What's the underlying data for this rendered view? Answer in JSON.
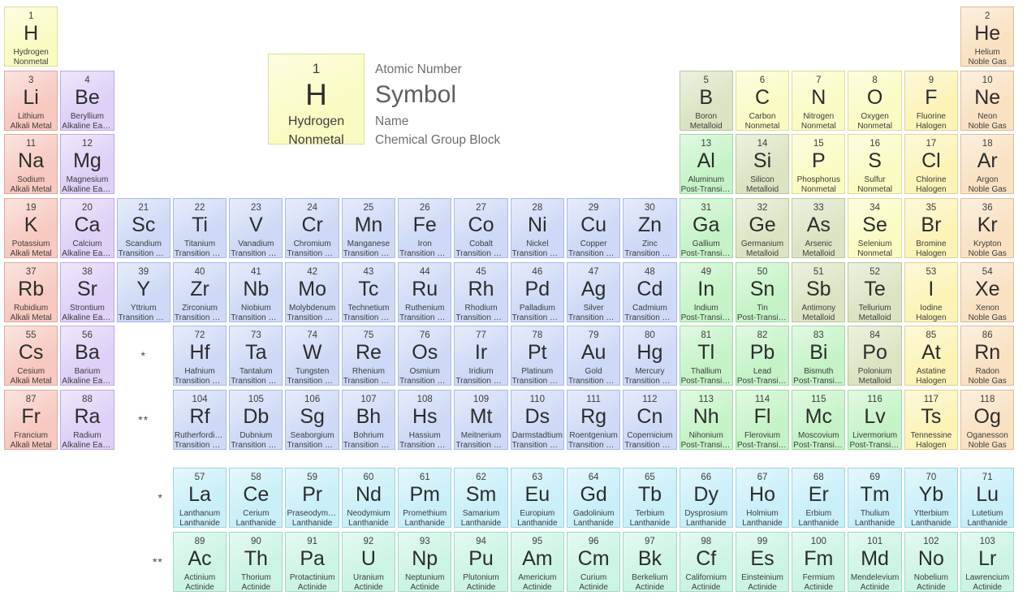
{
  "legend": {
    "atomic_number": "1",
    "symbol": "H",
    "name": "Hydrogen",
    "group": "Nonmetal",
    "labels": {
      "atomic_number": "Atomic Number",
      "symbol": "Symbol",
      "name": "Name",
      "group": "Chemical Group Block"
    }
  },
  "groups": {
    "alkali-metal": {
      "label": "Alkali Metal",
      "fill": "#f7c9c0",
      "border": "#dfaaa1"
    },
    "alkaline-earth-metal": {
      "label": "Alkaline Earth Metal",
      "fill": "#ded0f7",
      "border": "#bfa9e4"
    },
    "transition-metal": {
      "label": "Transition Metal",
      "fill": "#cdd9f6",
      "border": "#abbae4"
    },
    "post-transition-metal": {
      "label": "Post-Transition Metal",
      "fill": "#c5f3c7",
      "border": "#9fdaa1"
    },
    "metalloid": {
      "label": "Metalloid",
      "fill": "#dae4c3",
      "border": "#bac799"
    },
    "nonmetal": {
      "label": "Nonmetal",
      "fill": "#fafbc3",
      "border": "#dcdc9e"
    },
    "halogen": {
      "label": "Halogen",
      "fill": "#fcf3b7",
      "border": "#ded294"
    },
    "noble-gas": {
      "label": "Noble Gas",
      "fill": "#f9e1c2",
      "border": "#debc97"
    },
    "lanthanide": {
      "label": "Lanthanide",
      "fill": "#c9eff8",
      "border": "#9fd4e0"
    },
    "actinide": {
      "label": "Actinide",
      "fill": "#cbf4e4",
      "border": "#a0dac4"
    }
  },
  "markers": [
    {
      "text": "*",
      "row": 6,
      "col": 3,
      "align": "center",
      "name": "lanthanide-series-marker"
    },
    {
      "text": "**",
      "row": 7,
      "col": 3,
      "align": "center",
      "name": "actinide-series-marker"
    },
    {
      "text": "*",
      "row": 8,
      "col": 3,
      "align": "right",
      "name": "lanthanide-row-marker"
    },
    {
      "text": "**",
      "row": 9,
      "col": 3,
      "align": "right",
      "name": "actinide-row-marker"
    }
  ],
  "elements": [
    {
      "number": 1,
      "symbol": "H",
      "name": "Hydrogen",
      "group": "nonmetal",
      "row": 1,
      "col": 1
    },
    {
      "number": 2,
      "symbol": "He",
      "name": "Helium",
      "group": "noble-gas",
      "row": 1,
      "col": 18
    },
    {
      "number": 3,
      "symbol": "Li",
      "name": "Lithium",
      "group": "alkali-metal",
      "row": 2,
      "col": 1
    },
    {
      "number": 4,
      "symbol": "Be",
      "name": "Beryllium",
      "group": "alkaline-earth-metal",
      "row": 2,
      "col": 2
    },
    {
      "number": 5,
      "symbol": "B",
      "name": "Boron",
      "group": "metalloid",
      "row": 2,
      "col": 13
    },
    {
      "number": 6,
      "symbol": "C",
      "name": "Carbon",
      "group": "nonmetal",
      "row": 2,
      "col": 14
    },
    {
      "number": 7,
      "symbol": "N",
      "name": "Nitrogen",
      "group": "nonmetal",
      "row": 2,
      "col": 15
    },
    {
      "number": 8,
      "symbol": "O",
      "name": "Oxygen",
      "group": "nonmetal",
      "row": 2,
      "col": 16
    },
    {
      "number": 9,
      "symbol": "F",
      "name": "Fluorine",
      "group": "halogen",
      "row": 2,
      "col": 17
    },
    {
      "number": 10,
      "symbol": "Ne",
      "name": "Neon",
      "group": "noble-gas",
      "row": 2,
      "col": 18
    },
    {
      "number": 11,
      "symbol": "Na",
      "name": "Sodium",
      "group": "alkali-metal",
      "row": 3,
      "col": 1
    },
    {
      "number": 12,
      "symbol": "Mg",
      "name": "Magnesium",
      "group": "alkaline-earth-metal",
      "row": 3,
      "col": 2
    },
    {
      "number": 13,
      "symbol": "Al",
      "name": "Aluminum",
      "group": "post-transition-metal",
      "row": 3,
      "col": 13
    },
    {
      "number": 14,
      "symbol": "Si",
      "name": "Silicon",
      "group": "metalloid",
      "row": 3,
      "col": 14
    },
    {
      "number": 15,
      "symbol": "P",
      "name": "Phosphorus",
      "group": "nonmetal",
      "row": 3,
      "col": 15
    },
    {
      "number": 16,
      "symbol": "S",
      "name": "Sulfur",
      "group": "nonmetal",
      "row": 3,
      "col": 16
    },
    {
      "number": 17,
      "symbol": "Cl",
      "name": "Chlorine",
      "group": "halogen",
      "row": 3,
      "col": 17
    },
    {
      "number": 18,
      "symbol": "Ar",
      "name": "Argon",
      "group": "noble-gas",
      "row": 3,
      "col": 18
    },
    {
      "number": 19,
      "symbol": "K",
      "name": "Potassium",
      "group": "alkali-metal",
      "row": 4,
      "col": 1
    },
    {
      "number": 20,
      "symbol": "Ca",
      "name": "Calcium",
      "group": "alkaline-earth-metal",
      "row": 4,
      "col": 2
    },
    {
      "number": 21,
      "symbol": "Sc",
      "name": "Scandium",
      "group": "transition-metal",
      "row": 4,
      "col": 3
    },
    {
      "number": 22,
      "symbol": "Ti",
      "name": "Titanium",
      "group": "transition-metal",
      "row": 4,
      "col": 4
    },
    {
      "number": 23,
      "symbol": "V",
      "name": "Vanadium",
      "group": "transition-metal",
      "row": 4,
      "col": 5
    },
    {
      "number": 24,
      "symbol": "Cr",
      "name": "Chromium",
      "group": "transition-metal",
      "row": 4,
      "col": 6
    },
    {
      "number": 25,
      "symbol": "Mn",
      "name": "Manganese",
      "group": "transition-metal",
      "row": 4,
      "col": 7
    },
    {
      "number": 26,
      "symbol": "Fe",
      "name": "Iron",
      "group": "transition-metal",
      "row": 4,
      "col": 8
    },
    {
      "number": 27,
      "symbol": "Co",
      "name": "Cobalt",
      "group": "transition-metal",
      "row": 4,
      "col": 9
    },
    {
      "number": 28,
      "symbol": "Ni",
      "name": "Nickel",
      "group": "transition-metal",
      "row": 4,
      "col": 10
    },
    {
      "number": 29,
      "symbol": "Cu",
      "name": "Copper",
      "group": "transition-metal",
      "row": 4,
      "col": 11
    },
    {
      "number": 30,
      "symbol": "Zn",
      "name": "Zinc",
      "group": "transition-metal",
      "row": 4,
      "col": 12
    },
    {
      "number": 31,
      "symbol": "Ga",
      "name": "Gallium",
      "group": "post-transition-metal",
      "row": 4,
      "col": 13
    },
    {
      "number": 32,
      "symbol": "Ge",
      "name": "Germanium",
      "group": "metalloid",
      "row": 4,
      "col": 14
    },
    {
      "number": 33,
      "symbol": "As",
      "name": "Arsenic",
      "group": "metalloid",
      "row": 4,
      "col": 15
    },
    {
      "number": 34,
      "symbol": "Se",
      "name": "Selenium",
      "group": "nonmetal",
      "row": 4,
      "col": 16
    },
    {
      "number": 35,
      "symbol": "Br",
      "name": "Bromine",
      "group": "halogen",
      "row": 4,
      "col": 17
    },
    {
      "number": 36,
      "symbol": "Kr",
      "name": "Krypton",
      "group": "noble-gas",
      "row": 4,
      "col": 18
    },
    {
      "number": 37,
      "symbol": "Rb",
      "name": "Rubidium",
      "group": "alkali-metal",
      "row": 5,
      "col": 1
    },
    {
      "number": 38,
      "symbol": "Sr",
      "name": "Strontium",
      "group": "alkaline-earth-metal",
      "row": 5,
      "col": 2
    },
    {
      "number": 39,
      "symbol": "Y",
      "name": "Yttrium",
      "group": "transition-metal",
      "row": 5,
      "col": 3
    },
    {
      "number": 40,
      "symbol": "Zr",
      "name": "Zirconium",
      "group": "transition-metal",
      "row": 5,
      "col": 4
    },
    {
      "number": 41,
      "symbol": "Nb",
      "name": "Niobium",
      "group": "transition-metal",
      "row": 5,
      "col": 5
    },
    {
      "number": 42,
      "symbol": "Mo",
      "name": "Molybdenum",
      "group": "transition-metal",
      "row": 5,
      "col": 6
    },
    {
      "number": 43,
      "symbol": "Tc",
      "name": "Technetium",
      "group": "transition-metal",
      "row": 5,
      "col": 7
    },
    {
      "number": 44,
      "symbol": "Ru",
      "name": "Ruthenium",
      "group": "transition-metal",
      "row": 5,
      "col": 8
    },
    {
      "number": 45,
      "symbol": "Rh",
      "name": "Rhodium",
      "group": "transition-metal",
      "row": 5,
      "col": 9
    },
    {
      "number": 46,
      "symbol": "Pd",
      "name": "Palladium",
      "group": "transition-metal",
      "row": 5,
      "col": 10
    },
    {
      "number": 47,
      "symbol": "Ag",
      "name": "Silver",
      "group": "transition-metal",
      "row": 5,
      "col": 11
    },
    {
      "number": 48,
      "symbol": "Cd",
      "name": "Cadmium",
      "group": "transition-metal",
      "row": 5,
      "col": 12
    },
    {
      "number": 49,
      "symbol": "In",
      "name": "Indium",
      "group": "post-transition-metal",
      "row": 5,
      "col": 13
    },
    {
      "number": 50,
      "symbol": "Sn",
      "name": "Tin",
      "group": "post-transition-metal",
      "row": 5,
      "col": 14
    },
    {
      "number": 51,
      "symbol": "Sb",
      "name": "Antimony",
      "group": "metalloid",
      "row": 5,
      "col": 15
    },
    {
      "number": 52,
      "symbol": "Te",
      "name": "Tellurium",
      "group": "metalloid",
      "row": 5,
      "col": 16
    },
    {
      "number": 53,
      "symbol": "I",
      "name": "Iodine",
      "group": "halogen",
      "row": 5,
      "col": 17
    },
    {
      "number": 54,
      "symbol": "Xe",
      "name": "Xenon",
      "group": "noble-gas",
      "row": 5,
      "col": 18
    },
    {
      "number": 55,
      "symbol": "Cs",
      "name": "Cesium",
      "group": "alkali-metal",
      "row": 6,
      "col": 1
    },
    {
      "number": 56,
      "symbol": "Ba",
      "name": "Barium",
      "group": "alkaline-earth-metal",
      "row": 6,
      "col": 2
    },
    {
      "number": 72,
      "symbol": "Hf",
      "name": "Hafnium",
      "group": "transition-metal",
      "row": 6,
      "col": 4
    },
    {
      "number": 73,
      "symbol": "Ta",
      "name": "Tantalum",
      "group": "transition-metal",
      "row": 6,
      "col": 5
    },
    {
      "number": 74,
      "symbol": "W",
      "name": "Tungsten",
      "group": "transition-metal",
      "row": 6,
      "col": 6
    },
    {
      "number": 75,
      "symbol": "Re",
      "name": "Rhenium",
      "group": "transition-metal",
      "row": 6,
      "col": 7
    },
    {
      "number": 76,
      "symbol": "Os",
      "name": "Osmium",
      "group": "transition-metal",
      "row": 6,
      "col": 8
    },
    {
      "number": 77,
      "symbol": "Ir",
      "name": "Iridium",
      "group": "transition-metal",
      "row": 6,
      "col": 9
    },
    {
      "number": 78,
      "symbol": "Pt",
      "name": "Platinum",
      "group": "transition-metal",
      "row": 6,
      "col": 10
    },
    {
      "number": 79,
      "symbol": "Au",
      "name": "Gold",
      "group": "transition-metal",
      "row": 6,
      "col": 11
    },
    {
      "number": 80,
      "symbol": "Hg",
      "name": "Mercury",
      "group": "transition-metal",
      "row": 6,
      "col": 12
    },
    {
      "number": 81,
      "symbol": "Tl",
      "name": "Thallium",
      "group": "post-transition-metal",
      "row": 6,
      "col": 13
    },
    {
      "number": 82,
      "symbol": "Pb",
      "name": "Lead",
      "group": "post-transition-metal",
      "row": 6,
      "col": 14
    },
    {
      "number": 83,
      "symbol": "Bi",
      "name": "Bismuth",
      "group": "post-transition-metal",
      "row": 6,
      "col": 15
    },
    {
      "number": 84,
      "symbol": "Po",
      "name": "Polonium",
      "group": "metalloid",
      "row": 6,
      "col": 16
    },
    {
      "number": 85,
      "symbol": "At",
      "name": "Astatine",
      "group": "halogen",
      "row": 6,
      "col": 17
    },
    {
      "number": 86,
      "symbol": "Rn",
      "name": "Radon",
      "group": "noble-gas",
      "row": 6,
      "col": 18
    },
    {
      "number": 87,
      "symbol": "Fr",
      "name": "Francium",
      "group": "alkali-metal",
      "row": 7,
      "col": 1
    },
    {
      "number": 88,
      "symbol": "Ra",
      "name": "Radium",
      "group": "alkaline-earth-metal",
      "row": 7,
      "col": 2
    },
    {
      "number": 104,
      "symbol": "Rf",
      "name": "Rutherfordium",
      "group": "transition-metal",
      "row": 7,
      "col": 4
    },
    {
      "number": 105,
      "symbol": "Db",
      "name": "Dubnium",
      "group": "transition-metal",
      "row": 7,
      "col": 5
    },
    {
      "number": 106,
      "symbol": "Sg",
      "name": "Seaborgium",
      "group": "transition-metal",
      "row": 7,
      "col": 6
    },
    {
      "number": 107,
      "symbol": "Bh",
      "name": "Bohrium",
      "group": "transition-metal",
      "row": 7,
      "col": 7
    },
    {
      "number": 108,
      "symbol": "Hs",
      "name": "Hassium",
      "group": "transition-metal",
      "row": 7,
      "col": 8
    },
    {
      "number": 109,
      "symbol": "Mt",
      "name": "Meitnerium",
      "group": "transition-metal",
      "row": 7,
      "col": 9
    },
    {
      "number": 110,
      "symbol": "Ds",
      "name": "Darmstadtium",
      "group": "transition-metal",
      "row": 7,
      "col": 10
    },
    {
      "number": 111,
      "symbol": "Rg",
      "name": "Roentgenium",
      "group": "transition-metal",
      "row": 7,
      "col": 11
    },
    {
      "number": 112,
      "symbol": "Cn",
      "name": "Copernicium",
      "group": "transition-metal",
      "row": 7,
      "col": 12
    },
    {
      "number": 113,
      "symbol": "Nh",
      "name": "Nihonium",
      "group": "post-transition-metal",
      "row": 7,
      "col": 13
    },
    {
      "number": 114,
      "symbol": "Fl",
      "name": "Flerovium",
      "group": "post-transition-metal",
      "row": 7,
      "col": 14
    },
    {
      "number": 115,
      "symbol": "Mc",
      "name": "Moscovium",
      "group": "post-transition-metal",
      "row": 7,
      "col": 15
    },
    {
      "number": 116,
      "symbol": "Lv",
      "name": "Livermorium",
      "group": "post-transition-metal",
      "row": 7,
      "col": 16
    },
    {
      "number": 117,
      "symbol": "Ts",
      "name": "Tennessine",
      "group": "halogen",
      "row": 7,
      "col": 17
    },
    {
      "number": 118,
      "symbol": "Og",
      "name": "Oganesson",
      "group": "noble-gas",
      "row": 7,
      "col": 18
    },
    {
      "number": 57,
      "symbol": "La",
      "name": "Lanthanum",
      "group": "lanthanide",
      "row": 8,
      "col": 4
    },
    {
      "number": 58,
      "symbol": "Ce",
      "name": "Cerium",
      "group": "lanthanide",
      "row": 8,
      "col": 5
    },
    {
      "number": 59,
      "symbol": "Pr",
      "name": "Praseodymium",
      "group": "lanthanide",
      "row": 8,
      "col": 6
    },
    {
      "number": 60,
      "symbol": "Nd",
      "name": "Neodymium",
      "group": "lanthanide",
      "row": 8,
      "col": 7
    },
    {
      "number": 61,
      "symbol": "Pm",
      "name": "Promethium",
      "group": "lanthanide",
      "row": 8,
      "col": 8
    },
    {
      "number": 62,
      "symbol": "Sm",
      "name": "Samarium",
      "group": "lanthanide",
      "row": 8,
      "col": 9
    },
    {
      "number": 63,
      "symbol": "Eu",
      "name": "Europium",
      "group": "lanthanide",
      "row": 8,
      "col": 10
    },
    {
      "number": 64,
      "symbol": "Gd",
      "name": "Gadolinium",
      "group": "lanthanide",
      "row": 8,
      "col": 11
    },
    {
      "number": 65,
      "symbol": "Tb",
      "name": "Terbium",
      "group": "lanthanide",
      "row": 8,
      "col": 12
    },
    {
      "number": 66,
      "symbol": "Dy",
      "name": "Dysprosium",
      "group": "lanthanide",
      "row": 8,
      "col": 13
    },
    {
      "number": 67,
      "symbol": "Ho",
      "name": "Holmium",
      "group": "lanthanide",
      "row": 8,
      "col": 14
    },
    {
      "number": 68,
      "symbol": "Er",
      "name": "Erbium",
      "group": "lanthanide",
      "row": 8,
      "col": 15
    },
    {
      "number": 69,
      "symbol": "Tm",
      "name": "Thulium",
      "group": "lanthanide",
      "row": 8,
      "col": 16
    },
    {
      "number": 70,
      "symbol": "Yb",
      "name": "Ytterbium",
      "group": "lanthanide",
      "row": 8,
      "col": 17
    },
    {
      "number": 71,
      "symbol": "Lu",
      "name": "Lutetium",
      "group": "lanthanide",
      "row": 8,
      "col": 18
    },
    {
      "number": 89,
      "symbol": "Ac",
      "name": "Actinium",
      "group": "actinide",
      "row": 9,
      "col": 4
    },
    {
      "number": 90,
      "symbol": "Th",
      "name": "Thorium",
      "group": "actinide",
      "row": 9,
      "col": 5
    },
    {
      "number": 91,
      "symbol": "Pa",
      "name": "Protactinium",
      "group": "actinide",
      "row": 9,
      "col": 6
    },
    {
      "number": 92,
      "symbol": "U",
      "name": "Uranium",
      "group": "actinide",
      "row": 9,
      "col": 7
    },
    {
      "number": 93,
      "symbol": "Np",
      "name": "Neptunium",
      "group": "actinide",
      "row": 9,
      "col": 8
    },
    {
      "number": 94,
      "symbol": "Pu",
      "name": "Plutonium",
      "group": "actinide",
      "row": 9,
      "col": 9
    },
    {
      "number": 95,
      "symbol": "Am",
      "name": "Americium",
      "group": "actinide",
      "row": 9,
      "col": 10
    },
    {
      "number": 96,
      "symbol": "Cm",
      "name": "Curium",
      "group": "actinide",
      "row": 9,
      "col": 11
    },
    {
      "number": 97,
      "symbol": "Bk",
      "name": "Berkelium",
      "group": "actinide",
      "row": 9,
      "col": 12
    },
    {
      "number": 98,
      "symbol": "Cf",
      "name": "Californium",
      "group": "actinide",
      "row": 9,
      "col": 13
    },
    {
      "number": 99,
      "symbol": "Es",
      "name": "Einsteinium",
      "group": "actinide",
      "row": 9,
      "col": 14
    },
    {
      "number": 100,
      "symbol": "Fm",
      "name": "Fermium",
      "group": "actinide",
      "row": 9,
      "col": 15
    },
    {
      "number": 101,
      "symbol": "Md",
      "name": "Mendelevium",
      "group": "actinide",
      "row": 9,
      "col": 16
    },
    {
      "number": 102,
      "symbol": "No",
      "name": "Nobelium",
      "group": "actinide",
      "row": 9,
      "col": 17
    },
    {
      "number": 103,
      "symbol": "Lr",
      "name": "Lawrencium",
      "group": "actinide",
      "row": 9,
      "col": 18
    }
  ]
}
